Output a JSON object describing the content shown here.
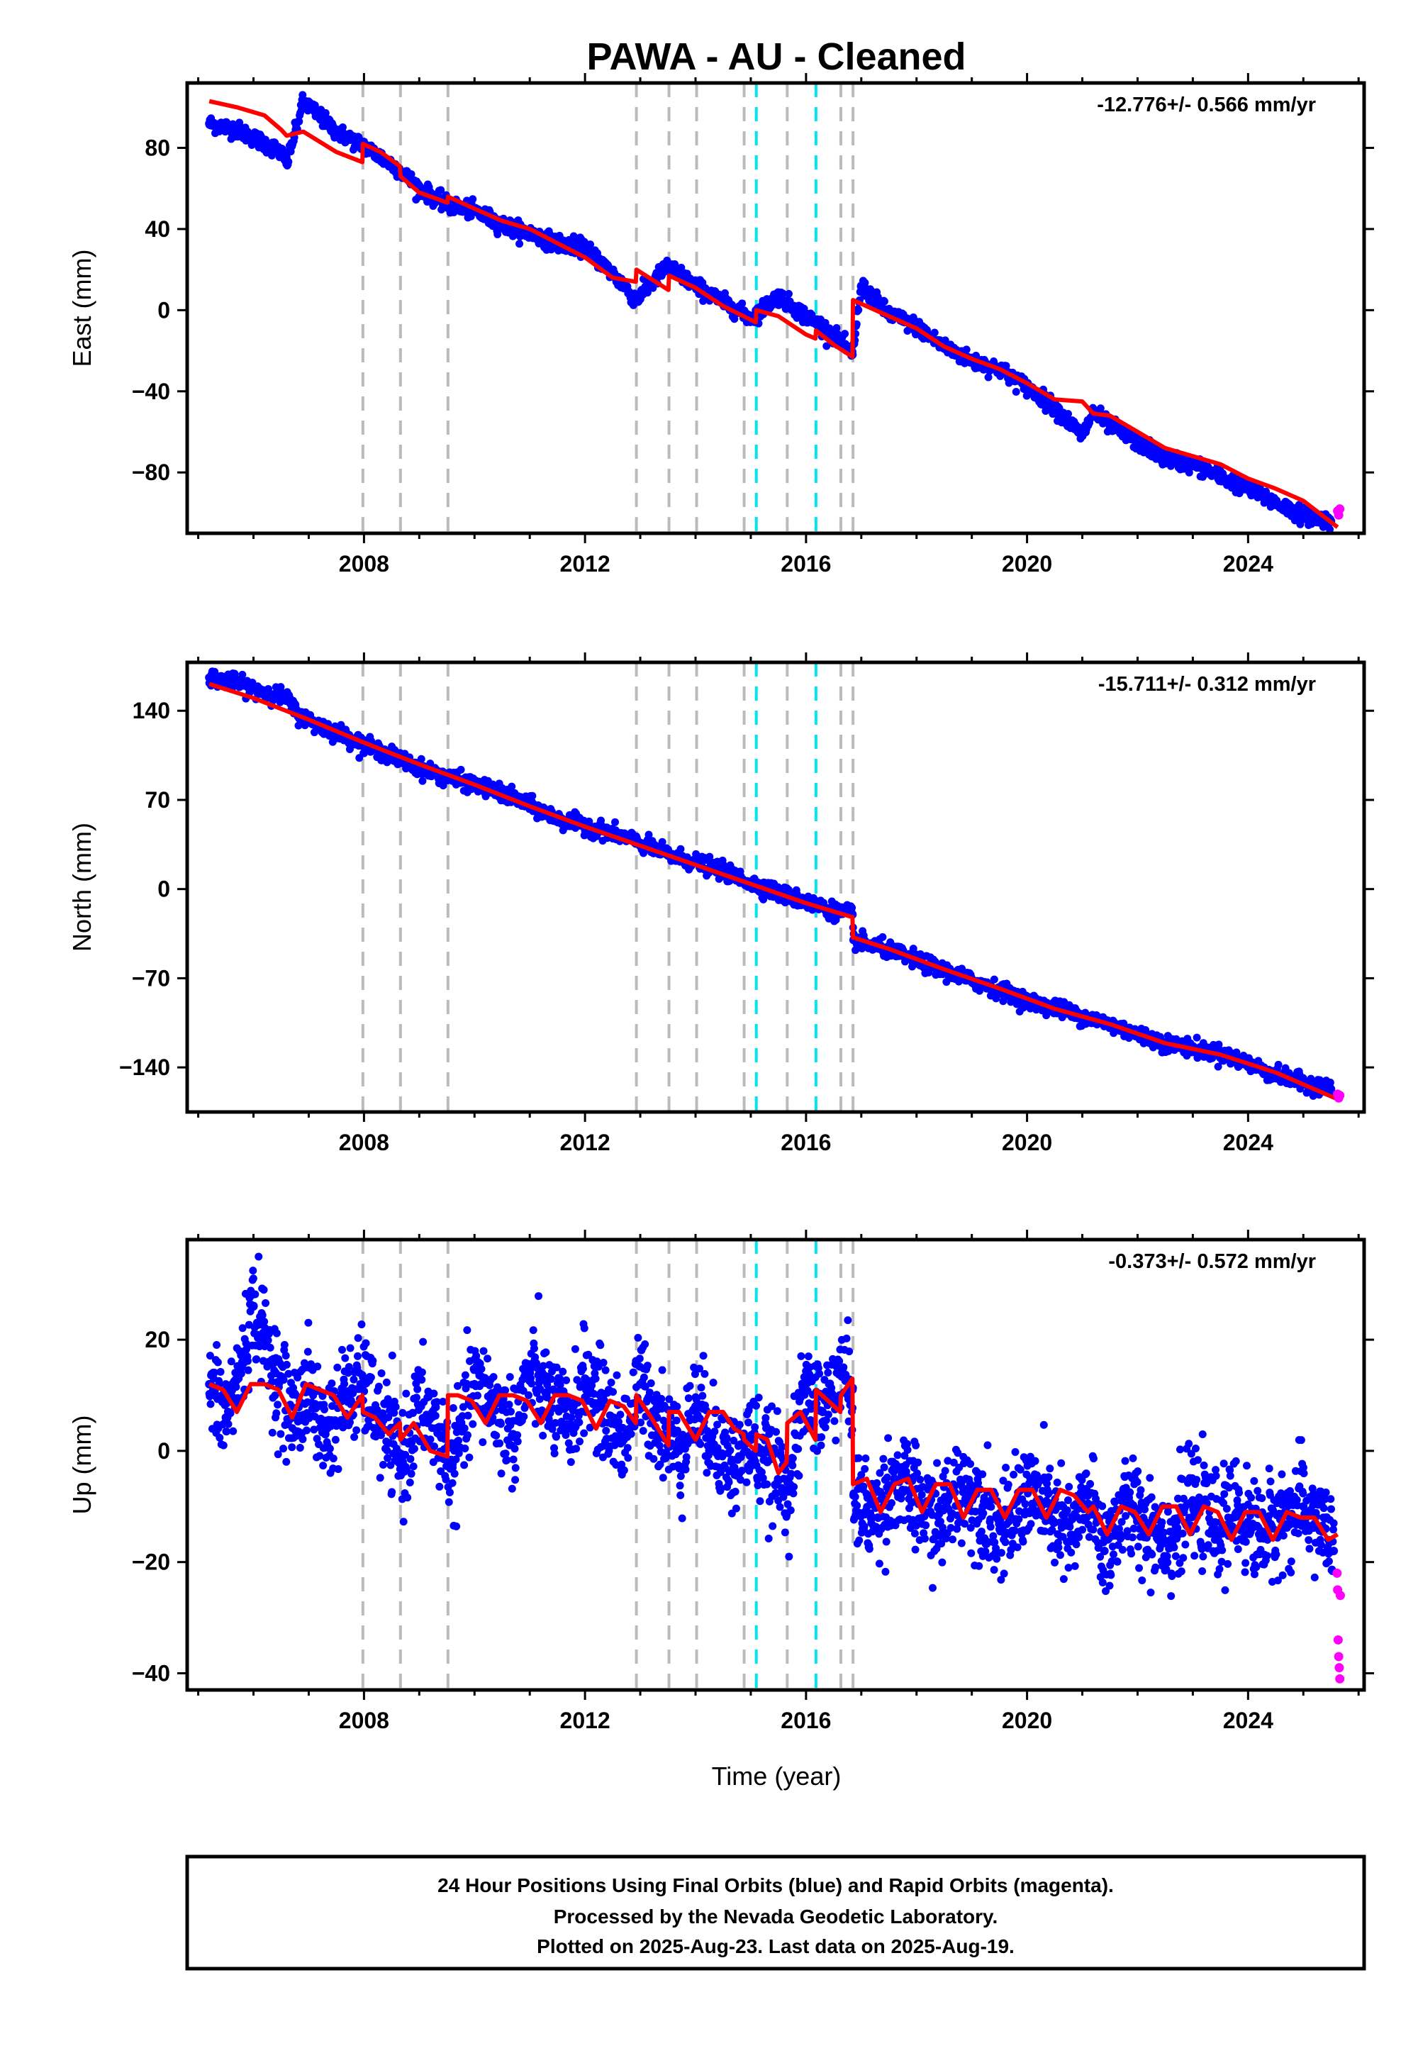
{
  "title": "PAWA  - AU - Cleaned",
  "xlabel": "Time (year)",
  "footer": [
    "24 Hour Positions Using Final Orbits (blue) and Rapid Orbits (magenta).",
    "Processed by the Nevada Geodetic Laboratory.",
    "Plotted on 2025-Aug-23. Last data on 2025-Aug-19."
  ],
  "colors": {
    "final": "#0000ff",
    "rapid": "#ff00ff",
    "model": "#ff0000",
    "equip_change": "#bbbbbb",
    "eq_event": "#00e5ee"
  },
  "chart_data": [
    {
      "type": "scatter",
      "component": "East",
      "ylabel": "East (mm)",
      "rate": "-12.776+/- 0.566 mm/yr",
      "xlim": [
        2004.8,
        2026.1
      ],
      "ylim": [
        -110,
        112
      ],
      "xticks": [
        2008,
        2012,
        2016,
        2020,
        2024
      ],
      "yticks": [
        80,
        40,
        0,
        -40,
        -80
      ],
      "gray_lines": [
        2007.98,
        2008.66,
        2009.52,
        2012.93,
        2013.52,
        2014.02,
        2014.88,
        2015.66,
        2016.63,
        2016.85
      ],
      "cyan_lines": [
        2015.1,
        2016.18
      ],
      "series": [
        {
          "role": "final",
          "x": [
            2005.2,
            2005.7,
            2006.0,
            2006.5,
            2006.6,
            2006.9,
            2007.5,
            2008.0,
            2008.6,
            2009.0,
            2009.5,
            2010.0,
            2010.5,
            2011.0,
            2011.5,
            2012.0,
            2012.5,
            2012.93,
            2013.5,
            2014.0,
            2014.5,
            2015.0,
            2015.5,
            2016.0,
            2016.5,
            2016.84,
            2017.0,
            2017.5,
            2018.0,
            2018.5,
            2019.0,
            2019.5,
            2020.0,
            2020.5,
            2021.0,
            2021.2,
            2021.5,
            2022.0,
            2022.5,
            2023.0,
            2023.5,
            2024.0,
            2024.5,
            2025.0,
            2025.5
          ],
          "y": [
            92,
            89,
            85,
            78,
            72,
            103,
            88,
            81,
            70,
            60,
            52,
            49,
            42,
            38,
            33,
            31,
            18,
            5,
            22,
            12,
            4,
            -4,
            7,
            -3,
            -12,
            -22,
            12,
            -2,
            -8,
            -18,
            -25,
            -29,
            -38,
            -48,
            -62,
            -50,
            -57,
            -65,
            -73,
            -76,
            -82,
            -88,
            -95,
            -101,
            -104
          ]
        },
        {
          "role": "rapid",
          "x": [
            2025.62,
            2025.64,
            2025.66
          ],
          "y": [
            -99,
            -101,
            -98
          ]
        },
        {
          "role": "model",
          "x": [
            2005.2,
            2005.7,
            2006.2,
            2006.5,
            2006.6,
            2006.9,
            2007.5,
            2007.97,
            2007.98,
            2008.3,
            2008.65,
            2008.66,
            2009.0,
            2009.51,
            2009.52,
            2010.0,
            2010.5,
            2011.0,
            2011.5,
            2012.0,
            2012.5,
            2012.92,
            2012.93,
            2013.51,
            2013.52,
            2014.0,
            2014.5,
            2015.09,
            2015.1,
            2015.5,
            2016.0,
            2016.17,
            2016.18,
            2016.5,
            2016.84,
            2016.85,
            2017.5,
            2018.0,
            2018.5,
            2019.0,
            2019.5,
            2020.0,
            2020.5,
            2021.0,
            2021.2,
            2021.5,
            2022.0,
            2022.5,
            2023.0,
            2023.5,
            2024.0,
            2024.5,
            2025.0,
            2025.62
          ],
          "y": [
            103,
            100,
            96,
            89,
            86,
            88,
            78,
            73,
            82,
            78,
            71,
            66,
            58,
            53,
            56,
            50,
            44,
            40,
            33,
            26,
            16,
            14,
            20,
            10,
            17,
            11,
            2,
            -6,
            0,
            -3,
            -12,
            -14,
            -10,
            -17,
            -23,
            5,
            -3,
            -9,
            -18,
            -24,
            -29,
            -36,
            -44,
            -45,
            -51,
            -52,
            -60,
            -68,
            -72,
            -76,
            -83,
            -88,
            -94,
            -107
          ]
        }
      ]
    },
    {
      "type": "scatter",
      "component": "North",
      "ylabel": "North (mm)",
      "rate": "-15.711+/- 0.312 mm/yr",
      "xlim": [
        2004.8,
        2026.1
      ],
      "ylim": [
        -175,
        178
      ],
      "xticks": [
        2008,
        2012,
        2016,
        2020,
        2024
      ],
      "yticks": [
        140,
        70,
        0,
        -70,
        -140
      ],
      "gray_lines": [
        2007.98,
        2008.66,
        2009.52,
        2012.93,
        2013.52,
        2014.02,
        2014.88,
        2015.66,
        2016.63,
        2016.85
      ],
      "cyan_lines": [
        2015.1,
        2016.18
      ],
      "series": [
        {
          "role": "final",
          "x": [
            2005.2,
            2005.6,
            2006.0,
            2006.4,
            2006.6,
            2006.8,
            2007.2,
            2007.6,
            2008.0,
            2008.5,
            2009.0,
            2009.5,
            2010.0,
            2010.5,
            2011.0,
            2011.5,
            2012.0,
            2012.5,
            2013.0,
            2013.5,
            2014.0,
            2014.5,
            2015.0,
            2015.5,
            2016.0,
            2016.5,
            2016.84,
            2016.86,
            2017.5,
            2018.0,
            2018.5,
            2019.0,
            2019.5,
            2020.0,
            2020.5,
            2021.0,
            2021.5,
            2022.0,
            2022.5,
            2023.0,
            2023.5,
            2024.0,
            2024.5,
            2025.0,
            2025.5
          ],
          "y": [
            166,
            163,
            157,
            153,
            150,
            137,
            128,
            122,
            113,
            105,
            95,
            88,
            82,
            75,
            66,
            55,
            50,
            44,
            36,
            27,
            21,
            14,
            5,
            -3,
            -10,
            -17,
            -20,
            -40,
            -48,
            -56,
            -64,
            -72,
            -79,
            -88,
            -93,
            -100,
            -106,
            -114,
            -121,
            -125,
            -129,
            -137,
            -146,
            -152,
            -157
          ]
        },
        {
          "role": "rapid",
          "x": [
            2025.62,
            2025.64,
            2025.66
          ],
          "y": [
            -161,
            -164,
            -162
          ]
        },
        {
          "role": "model",
          "x": [
            2005.2,
            2006.0,
            2007.0,
            2008.0,
            2009.0,
            2010.0,
            2011.0,
            2012.0,
            2013.0,
            2014.0,
            2015.0,
            2016.0,
            2016.84,
            2016.85,
            2017.5,
            2018.5,
            2019.5,
            2020.5,
            2021.5,
            2022.5,
            2023.5,
            2024.5,
            2025.62
          ],
          "y": [
            161,
            150,
            133,
            115,
            98,
            82,
            65,
            49,
            34,
            19,
            4,
            -11,
            -22,
            -38,
            -47,
            -63,
            -78,
            -94,
            -106,
            -121,
            -130,
            -144,
            -165
          ]
        }
      ]
    },
    {
      "type": "scatter",
      "component": "Up",
      "ylabel": "Up (mm)",
      "rate": "-0.373+/- 0.572 mm/yr",
      "xlim": [
        2004.8,
        2026.1
      ],
      "ylim": [
        -43,
        38
      ],
      "xticks": [
        2008,
        2012,
        2016,
        2020,
        2024
      ],
      "yticks": [
        20,
        0,
        -20,
        -40
      ],
      "gray_lines": [
        2007.98,
        2008.66,
        2009.52,
        2012.93,
        2013.52,
        2014.02,
        2014.88,
        2015.66,
        2016.63,
        2016.85
      ],
      "cyan_lines": [
        2015.1,
        2016.18
      ],
      "series": [
        {
          "role": "final",
          "x": [
            2005.2,
            2005.5,
            2005.8,
            2006.0,
            2006.2,
            2006.4,
            2006.7,
            2007.0,
            2007.3,
            2007.6,
            2008.0,
            2008.3,
            2008.7,
            2009.0,
            2009.3,
            2009.6,
            2010.0,
            2010.3,
            2010.7,
            2011.0,
            2011.3,
            2011.7,
            2012.0,
            2012.3,
            2012.7,
            2013.0,
            2013.3,
            2013.7,
            2014.0,
            2014.3,
            2014.7,
            2015.0,
            2015.3,
            2015.7,
            2016.0,
            2016.3,
            2016.6,
            2016.84,
            2016.86,
            2017.2,
            2017.6,
            2018.0,
            2018.4,
            2018.8,
            2019.2,
            2019.6,
            2020.0,
            2020.4,
            2020.8,
            2021.1,
            2021.4,
            2021.8,
            2022.2,
            2022.6,
            2023.0,
            2023.4,
            2023.8,
            2024.2,
            2024.6,
            2025.0,
            2025.4,
            2025.55
          ],
          "y": [
            12,
            6,
            16,
            26,
            20,
            14,
            6,
            11,
            3,
            9,
            12,
            5,
            -2,
            8,
            4,
            -3,
            12,
            9,
            3,
            14,
            10,
            4,
            13,
            8,
            2,
            12,
            6,
            0,
            8,
            3,
            -3,
            2,
            -2,
            -6,
            11,
            7,
            14,
            11,
            -8,
            -12,
            -5,
            -9,
            -13,
            -6,
            -10,
            -15,
            -7,
            -11,
            -16,
            -8,
            -18,
            -10,
            -13,
            -16,
            -9,
            -14,
            -11,
            -15,
            -12,
            -10,
            -14,
            -18
          ]
        },
        {
          "role": "rapid",
          "x": [
            2025.61,
            2025.62,
            2025.63,
            2025.64,
            2025.65,
            2025.66,
            2025.67
          ],
          "y": [
            -22,
            -25,
            -34,
            -37,
            -39,
            -41,
            -26
          ]
        },
        {
          "role": "model",
          "x": [
            2005.2,
            2005.45,
            2005.7,
            2005.95,
            2006.2,
            2006.45,
            2006.7,
            2006.95,
            2007.2,
            2007.45,
            2007.7,
            2007.97,
            2007.98,
            2008.2,
            2008.45,
            2008.65,
            2008.66,
            2008.9,
            2009.2,
            2009.51,
            2009.52,
            2009.7,
            2009.95,
            2010.2,
            2010.45,
            2010.7,
            2010.95,
            2011.2,
            2011.45,
            2011.7,
            2011.95,
            2012.2,
            2012.45,
            2012.7,
            2012.92,
            2012.93,
            2013.2,
            2013.51,
            2013.52,
            2013.7,
            2014.0,
            2014.25,
            2014.5,
            2014.7,
            2014.87,
            2014.88,
            2015.09,
            2015.1,
            2015.3,
            2015.5,
            2015.65,
            2015.66,
            2015.9,
            2016.17,
            2016.18,
            2016.4,
            2016.62,
            2016.63,
            2016.84,
            2016.85,
            2017.1,
            2017.35,
            2017.6,
            2017.85,
            2018.1,
            2018.35,
            2018.6,
            2018.85,
            2019.1,
            2019.35,
            2019.6,
            2019.85,
            2020.1,
            2020.35,
            2020.6,
            2020.85,
            2021.1,
            2021.2,
            2021.45,
            2021.7,
            2021.95,
            2022.2,
            2022.45,
            2022.7,
            2022.95,
            2023.2,
            2023.45,
            2023.7,
            2023.95,
            2024.2,
            2024.45,
            2024.7,
            2024.95,
            2025.2,
            2025.45,
            2025.62
          ],
          "y": [
            12,
            11,
            7,
            12,
            12,
            11,
            6,
            12,
            11,
            10,
            6,
            10,
            7,
            6,
            3,
            5,
            2,
            5,
            0,
            -1,
            10,
            10,
            9,
            5,
            10,
            10,
            9,
            5,
            10,
            10,
            9,
            4,
            9,
            8,
            5,
            10,
            6,
            1,
            7,
            7,
            2,
            7,
            7,
            4,
            3,
            2,
            0,
            3,
            2,
            -4,
            -2,
            5,
            7,
            2,
            11,
            9,
            7,
            10,
            13,
            -6,
            -5,
            -11,
            -6,
            -5,
            -11,
            -6,
            -6,
            -12,
            -7,
            -7,
            -12,
            -7,
            -7,
            -12,
            -7,
            -8,
            -11,
            -10,
            -15,
            -10,
            -11,
            -15,
            -10,
            -10,
            -15,
            -10,
            -11,
            -16,
            -11,
            -11,
            -16,
            -11,
            -12,
            -12,
            -16,
            -15
          ]
        }
      ]
    }
  ]
}
